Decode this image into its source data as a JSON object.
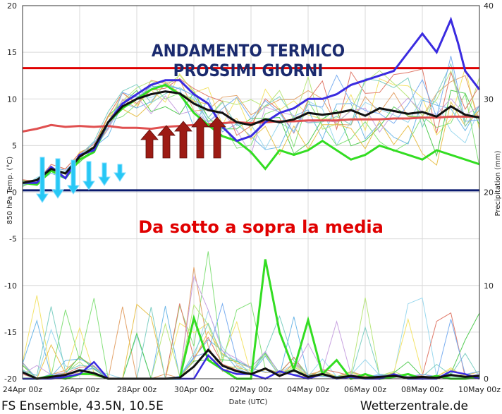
{
  "chart_data": {
    "type": "line",
    "title": [
      "ANDAMENTO TERMICO",
      "PROSSIMI GIORNI"
    ],
    "annotation": "Da sotto a sopra la media",
    "xlabel": "Date (UTC)",
    "ylabel_left": "850 hPa Temp. (°C)",
    "ylabel_right": "Precipitation (mm)",
    "ylim_left": [
      -20,
      20
    ],
    "ylim_right": [
      0,
      40
    ],
    "xlim_hours": [
      0,
      384
    ],
    "x_ticks": [
      "24Apr 00z",
      "26Apr 00z",
      "28Apr 00z",
      "30Apr 00z",
      "02May 00z",
      "04May 00z",
      "06May 00z",
      "08May 00z",
      "10May 00z"
    ],
    "y_ticks_left": [
      20,
      15,
      10,
      5,
      0,
      -5,
      -10,
      -15,
      -20
    ],
    "y_ticks_right": [
      40,
      30,
      20,
      10,
      0
    ],
    "grid": true,
    "reference_lines": [
      {
        "name": "upper",
        "value": 13.3,
        "color": "#e00000"
      },
      {
        "name": "zero",
        "value": 0.2,
        "color": "#0a1a6e"
      }
    ],
    "temp_mean": {
      "color": "#111111",
      "x_hours": [
        0,
        12,
        24,
        36,
        48,
        60,
        72,
        84,
        96,
        108,
        120,
        132,
        144,
        156,
        168,
        180,
        192,
        204,
        216,
        228,
        240,
        252,
        264,
        276,
        288,
        300,
        312,
        324,
        336,
        348,
        360,
        372,
        384
      ],
      "values": [
        1,
        1.3,
        2.5,
        2,
        3.8,
        4.8,
        7.5,
        9.2,
        10,
        10.5,
        10.8,
        10.6,
        9.5,
        8.8,
        8.5,
        7.5,
        7.2,
        7.8,
        7.5,
        7.8,
        8.5,
        8.3,
        8.5,
        8.8,
        8.2,
        9,
        8.7,
        8.4,
        8.6,
        8.1,
        9.2,
        8.3,
        8
      ]
    },
    "temp_operational": {
      "color": "#3a2be0",
      "x_hours": [
        0,
        12,
        24,
        36,
        48,
        60,
        72,
        84,
        96,
        108,
        120,
        132,
        144,
        156,
        168,
        180,
        192,
        204,
        216,
        228,
        240,
        252,
        264,
        276,
        288,
        300,
        312,
        324,
        336,
        348,
        360,
        366,
        372,
        384
      ],
      "values": [
        1,
        1,
        2.7,
        1.5,
        4,
        4.5,
        7.5,
        9.5,
        10.5,
        11.5,
        12,
        12,
        10.5,
        9.5,
        7,
        5.5,
        6,
        7.5,
        8.5,
        9,
        10,
        10,
        10.5,
        11.5,
        12,
        12.5,
        13,
        15,
        17,
        15,
        18.5,
        16,
        13,
        11
      ]
    },
    "temp_control": {
      "color": "#33dd22",
      "x_hours": [
        0,
        12,
        24,
        36,
        48,
        60,
        72,
        84,
        96,
        108,
        120,
        132,
        144,
        156,
        168,
        180,
        192,
        204,
        216,
        228,
        240,
        252,
        264,
        276,
        288,
        300,
        312,
        324,
        336,
        348,
        360,
        372,
        384
      ],
      "values": [
        1,
        0.8,
        2.3,
        1.5,
        3.5,
        4.3,
        7.5,
        9,
        10,
        11,
        11.5,
        10.5,
        8.5,
        7.2,
        6,
        5.5,
        4.3,
        2.5,
        4.5,
        4,
        4.5,
        5.5,
        4.5,
        3.5,
        4,
        5,
        4.5,
        4,
        3.5,
        4.5,
        4,
        3.5,
        3
      ]
    },
    "temp_climate": {
      "color": "#e05050",
      "x_hours": [
        0,
        12,
        24,
        36,
        48,
        60,
        72,
        84,
        96,
        108,
        120,
        132,
        144,
        156,
        168,
        180,
        192,
        204,
        216,
        228,
        240,
        252,
        264,
        276,
        288,
        300,
        312,
        324,
        336,
        348,
        360,
        372,
        384
      ],
      "values": [
        6.5,
        6.8,
        7.2,
        7,
        7.1,
        7,
        7.1,
        6.9,
        6.9,
        6.8,
        7,
        7.1,
        7.2,
        7.3,
        7.4,
        7.5,
        7.4,
        7.5,
        7.6,
        7.6,
        7.7,
        7.7,
        7.7,
        7.8,
        7.8,
        7.8,
        7.9,
        7.9,
        8,
        8,
        8.1,
        8.1,
        8.1
      ]
    },
    "precip_mean": {
      "color": "#111111",
      "x_hours": [
        0,
        12,
        24,
        36,
        48,
        60,
        72,
        84,
        96,
        108,
        120,
        132,
        144,
        156,
        168,
        180,
        192,
        204,
        216,
        228,
        240,
        252,
        264,
        276,
        288,
        300,
        312,
        324,
        336,
        348,
        360,
        372,
        384
      ],
      "values": [
        0.7,
        0,
        0.2,
        0.4,
        0.9,
        0.6,
        0,
        0,
        0,
        0,
        0,
        0.1,
        1.3,
        3.1,
        1.4,
        0.8,
        0.5,
        1.1,
        0.3,
        0.9,
        0.2,
        0.5,
        0.1,
        0.3,
        0.1,
        0.2,
        0.3,
        0.1,
        0.2,
        0.1,
        0.4,
        0.2,
        0.3
      ]
    },
    "precip_control": {
      "color": "#33dd22",
      "x_hours": [
        0,
        12,
        24,
        36,
        48,
        60,
        72,
        84,
        96,
        108,
        120,
        132,
        144,
        156,
        168,
        180,
        192,
        204,
        216,
        228,
        240,
        252,
        264,
        276,
        288,
        300,
        312,
        324,
        336,
        348,
        360,
        372,
        384
      ],
      "values": [
        0,
        0,
        0.3,
        0,
        0.5,
        0.5,
        0,
        0,
        0,
        0,
        0,
        0,
        6.5,
        2,
        1,
        0,
        0,
        12.8,
        5,
        1,
        6.3,
        0.5,
        2,
        0,
        0.5,
        0,
        0.2,
        0.5,
        0,
        0.3,
        0,
        0,
        0.2
      ]
    },
    "precip_operational": {
      "color": "#3a2be0",
      "x_hours": [
        0,
        12,
        24,
        36,
        48,
        60,
        72,
        84,
        96,
        108,
        120,
        132,
        144,
        156,
        168,
        180,
        192,
        204,
        216,
        228,
        240,
        252,
        264,
        276,
        288,
        300,
        312,
        324,
        336,
        348,
        360,
        372,
        384
      ],
      "values": [
        0,
        0,
        0,
        0.2,
        0.5,
        1.8,
        0,
        0,
        0,
        0,
        0,
        0,
        0,
        2.5,
        1,
        0.5,
        0.5,
        0,
        0.8,
        0.4,
        0,
        0.5,
        0,
        0.2,
        0,
        0,
        0.5,
        0,
        0,
        0,
        0.8,
        0.5,
        0
      ]
    },
    "ensemble_colors": [
      "#9ad8ee",
      "#f3e36a",
      "#84e07a",
      "#e3a36a",
      "#6fb8e8",
      "#b9e67c",
      "#55cc55",
      "#e07a6a",
      "#e8c14f",
      "#7ecfc3",
      "#c8a2e0",
      "#7aaef0"
    ],
    "arrows_down_cyan": 6,
    "arrows_up_red": 5
  },
  "footer": {
    "left": "FS Ensemble, 43.5N, 10.5E",
    "right": "Wetterzentrale.de"
  }
}
